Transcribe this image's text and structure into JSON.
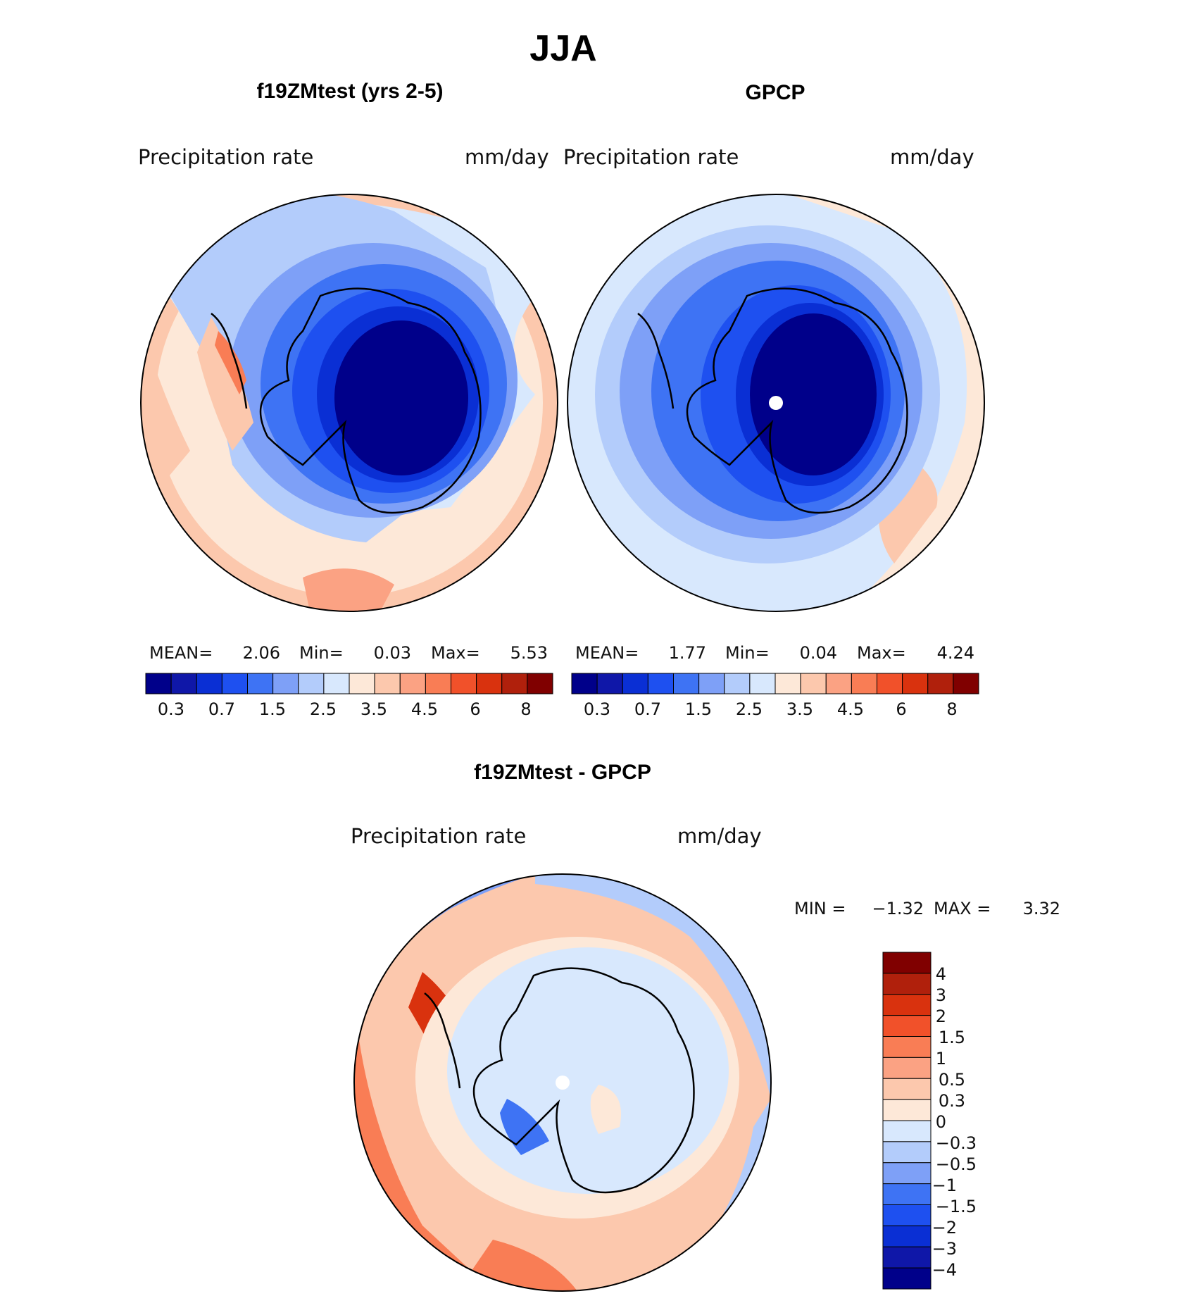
{
  "main_title": "JJA",
  "palette_abs": [
    "#00008a",
    "#0f17a8",
    "#0a2fd4",
    "#1e50f0",
    "#3e73f4",
    "#7ea0f7",
    "#b3ccfb",
    "#d8e8fd",
    "#fde8d8",
    "#fcc8ad",
    "#fba283",
    "#f97d55",
    "#f1512a",
    "#d9320e",
    "#b0200c",
    "#800000"
  ],
  "palette_diff": [
    "#00008a",
    "#0f17a8",
    "#0a2fd4",
    "#1e50f0",
    "#3e73f4",
    "#7ea0f7",
    "#b3ccfb",
    "#d8e8fd",
    "#fde8d8",
    "#fcc8ad",
    "#fba283",
    "#f97d55",
    "#f1512a",
    "#d9320e",
    "#b0200c",
    "#800000"
  ],
  "panels": {
    "model": {
      "title": "f19ZMtest (yrs 2-5)",
      "var_label": "Precipitation  rate",
      "units": "mm/day",
      "mean_label": "MEAN=",
      "mean": "2.06",
      "min_label": "Min=",
      "min": "0.03",
      "max_label": "Max=",
      "max": "5.53",
      "ticks": [
        "0.3",
        "0.7",
        "1.5",
        "2.5",
        "3.5",
        "4.5",
        "6",
        "8"
      ]
    },
    "obs": {
      "title": "GPCP",
      "var_label": "Precipitation  rate",
      "units": "mm/day",
      "mean_label": "MEAN=",
      "mean": "1.77",
      "min_label": "Min=",
      "min": "0.04",
      "max_label": "Max=",
      "max": "4.24",
      "ticks": [
        "0.3",
        "0.7",
        "1.5",
        "2.5",
        "3.5",
        "4.5",
        "6",
        "8"
      ]
    },
    "diff": {
      "title": "f19ZMtest - GPCP",
      "var_label": "Precipitation  rate",
      "units": "mm/day",
      "min_label": "MIN =",
      "min": "−1.32",
      "max_label": "MAX =",
      "max": "3.32",
      "ticks": [
        "4",
        "3",
        "2",
        "1.5",
        "1",
        "0.5",
        "0.3",
        "0",
        "−0.3",
        "−0.5",
        "−1",
        "−1.5",
        "−2",
        "−3",
        "−4"
      ]
    }
  }
}
